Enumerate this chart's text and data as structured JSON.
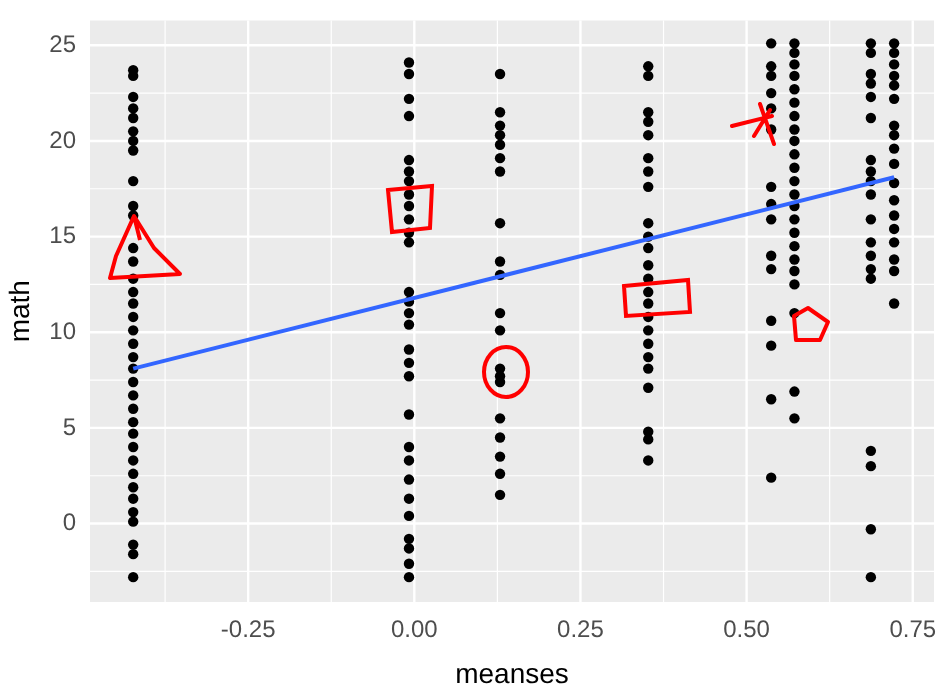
{
  "chart_data": {
    "type": "scatter",
    "xlabel": "meanses",
    "ylabel": "math",
    "xlim": [
      -0.488,
      0.782
    ],
    "ylim": [
      -4.1,
      26.3
    ],
    "xticks": [
      -0.25,
      {
        "value": 0,
        "label": "0.00"
      },
      0.25,
      {
        "value": 0.5,
        "label": "0.50"
      },
      0.75
    ],
    "yticks": [
      0,
      5,
      10,
      15,
      20,
      25
    ],
    "grid": true,
    "legend": false,
    "marker": "circle",
    "series": [
      {
        "color": "#000000",
        "x": [
          -0.423,
          -0.423,
          -0.423,
          -0.423,
          -0.423,
          -0.423,
          -0.423,
          -0.423,
          -0.423,
          -0.423,
          -0.423,
          -0.423,
          -0.423,
          -0.423,
          -0.423,
          -0.423,
          -0.423,
          -0.423,
          -0.423,
          -0.423,
          -0.423,
          -0.423,
          -0.423,
          -0.423,
          -0.423,
          -0.423,
          -0.423,
          -0.423,
          -0.423,
          -0.423,
          -0.423,
          -0.423,
          -0.423,
          -0.423,
          -0.423,
          -0.423
        ],
        "values": [
          23.7,
          23.4,
          22.3,
          21.7,
          21.2,
          20.5,
          20.0,
          19.5,
          17.9,
          16.6,
          16.1,
          14.4,
          13.7,
          12.8,
          12.1,
          11.5,
          10.8,
          10.1,
          9.4,
          8.7,
          8.1,
          7.4,
          6.7,
          6.0,
          5.3,
          4.7,
          4.0,
          3.3,
          2.6,
          1.9,
          1.3,
          0.6,
          0.1,
          -1.1,
          -1.6,
          -2.8
        ]
      },
      {
        "color": "#000000",
        "x": [
          -0.008,
          -0.008,
          -0.008,
          -0.008,
          -0.008,
          -0.008,
          -0.008,
          -0.008,
          -0.008,
          -0.008,
          -0.008,
          -0.008,
          -0.008,
          -0.008,
          -0.008,
          -0.008,
          -0.008,
          -0.008,
          -0.008,
          -0.008,
          -0.008,
          -0.008,
          -0.008,
          -0.008,
          -0.008,
          -0.008,
          -0.008,
          -0.008,
          -0.008
        ],
        "values": [
          24.1,
          23.5,
          22.2,
          21.3,
          19.0,
          18.4,
          17.9,
          17.2,
          16.6,
          15.9,
          15.2,
          14.7,
          12.1,
          11.6,
          11.0,
          10.4,
          9.1,
          8.4,
          7.7,
          5.7,
          4.0,
          3.3,
          2.3,
          1.3,
          0.4,
          -0.8,
          -1.3,
          -2.1,
          -2.8
        ]
      },
      {
        "color": "#000000",
        "x": [
          0.129,
          0.129,
          0.129,
          0.129,
          0.129,
          0.129,
          0.129,
          0.129,
          0.129,
          0.129,
          0.129,
          0.129,
          0.129,
          0.129,
          0.129,
          0.129,
          0.129,
          0.129,
          0.129,
          0.129
        ],
        "values": [
          23.5,
          21.5,
          20.8,
          20.3,
          19.8,
          19.1,
          18.4,
          15.7,
          13.7,
          13.0,
          11.0,
          10.1,
          8.1,
          7.7,
          7.4,
          5.5,
          4.5,
          3.5,
          2.6,
          1.5
        ]
      },
      {
        "color": "#000000",
        "x": [
          0.352,
          0.352,
          0.352,
          0.352,
          0.352,
          0.352,
          0.352,
          0.352,
          0.352,
          0.352,
          0.352,
          0.352,
          0.352,
          0.352,
          0.352,
          0.352,
          0.352,
          0.352,
          0.352,
          0.352,
          0.352,
          0.352,
          0.352,
          0.352
        ],
        "values": [
          23.9,
          23.4,
          21.5,
          21.0,
          20.3,
          19.1,
          18.4,
          17.6,
          15.7,
          15.0,
          14.4,
          13.5,
          12.8,
          12.1,
          11.5,
          10.8,
          10.1,
          9.4,
          8.7,
          8.1,
          7.1,
          4.8,
          4.4,
          3.3
        ]
      },
      {
        "color": "#000000",
        "x": [
          0.537,
          0.537,
          0.537,
          0.537,
          0.537,
          0.537,
          0.537,
          0.537,
          0.537,
          0.537,
          0.537,
          0.537,
          0.537,
          0.537,
          0.537
        ],
        "values": [
          25.1,
          23.9,
          23.4,
          22.5,
          21.7,
          20.6,
          17.6,
          16.7,
          15.9,
          14.0,
          13.3,
          10.6,
          9.3,
          6.5,
          2.4
        ]
      },
      {
        "color": "#000000",
        "x": [
          0.572,
          0.572,
          0.572,
          0.572,
          0.572,
          0.572,
          0.572,
          0.572,
          0.572,
          0.572,
          0.572,
          0.572,
          0.572,
          0.572,
          0.572,
          0.572,
          0.572,
          0.572,
          0.572,
          0.572,
          0.572,
          0.572,
          0.572
        ],
        "values": [
          25.1,
          24.6,
          24.0,
          23.4,
          22.7,
          22.0,
          21.3,
          20.6,
          20.0,
          19.3,
          18.6,
          17.9,
          17.2,
          16.6,
          15.9,
          15.2,
          14.5,
          13.8,
          13.2,
          12.5,
          11.0,
          6.9,
          5.5
        ]
      },
      {
        "color": "#000000",
        "x": [
          0.687,
          0.687,
          0.687,
          0.687,
          0.687,
          0.687,
          0.687,
          0.687,
          0.687,
          0.687,
          0.687,
          0.687,
          0.687,
          0.687,
          0.687,
          0.687,
          0.687,
          0.687,
          0.687
        ],
        "values": [
          25.1,
          24.6,
          23.5,
          23.0,
          22.3,
          21.2,
          19.0,
          18.4,
          17.9,
          17.2,
          15.9,
          14.7,
          14.0,
          13.3,
          12.8,
          3.8,
          3.0,
          -0.3,
          -2.8
        ]
      },
      {
        "color": "#000000",
        "x": [
          0.722,
          0.722,
          0.722,
          0.722,
          0.722,
          0.722,
          0.722,
          0.722,
          0.722,
          0.722,
          0.722,
          0.722,
          0.722,
          0.722,
          0.722,
          0.722,
          0.722,
          0.722
        ],
        "values": [
          25.1,
          24.6,
          24.0,
          23.4,
          22.9,
          22.2,
          20.8,
          20.3,
          19.6,
          18.8,
          17.8,
          16.9,
          16.1,
          15.4,
          14.7,
          13.8,
          13.2,
          11.5
        ]
      },
      {
        "type": "line",
        "color": "#3366ff",
        "marker": "none",
        "x": [
          -0.423,
          0.722
        ],
        "values": [
          8.1,
          18.1
        ]
      }
    ]
  }
}
